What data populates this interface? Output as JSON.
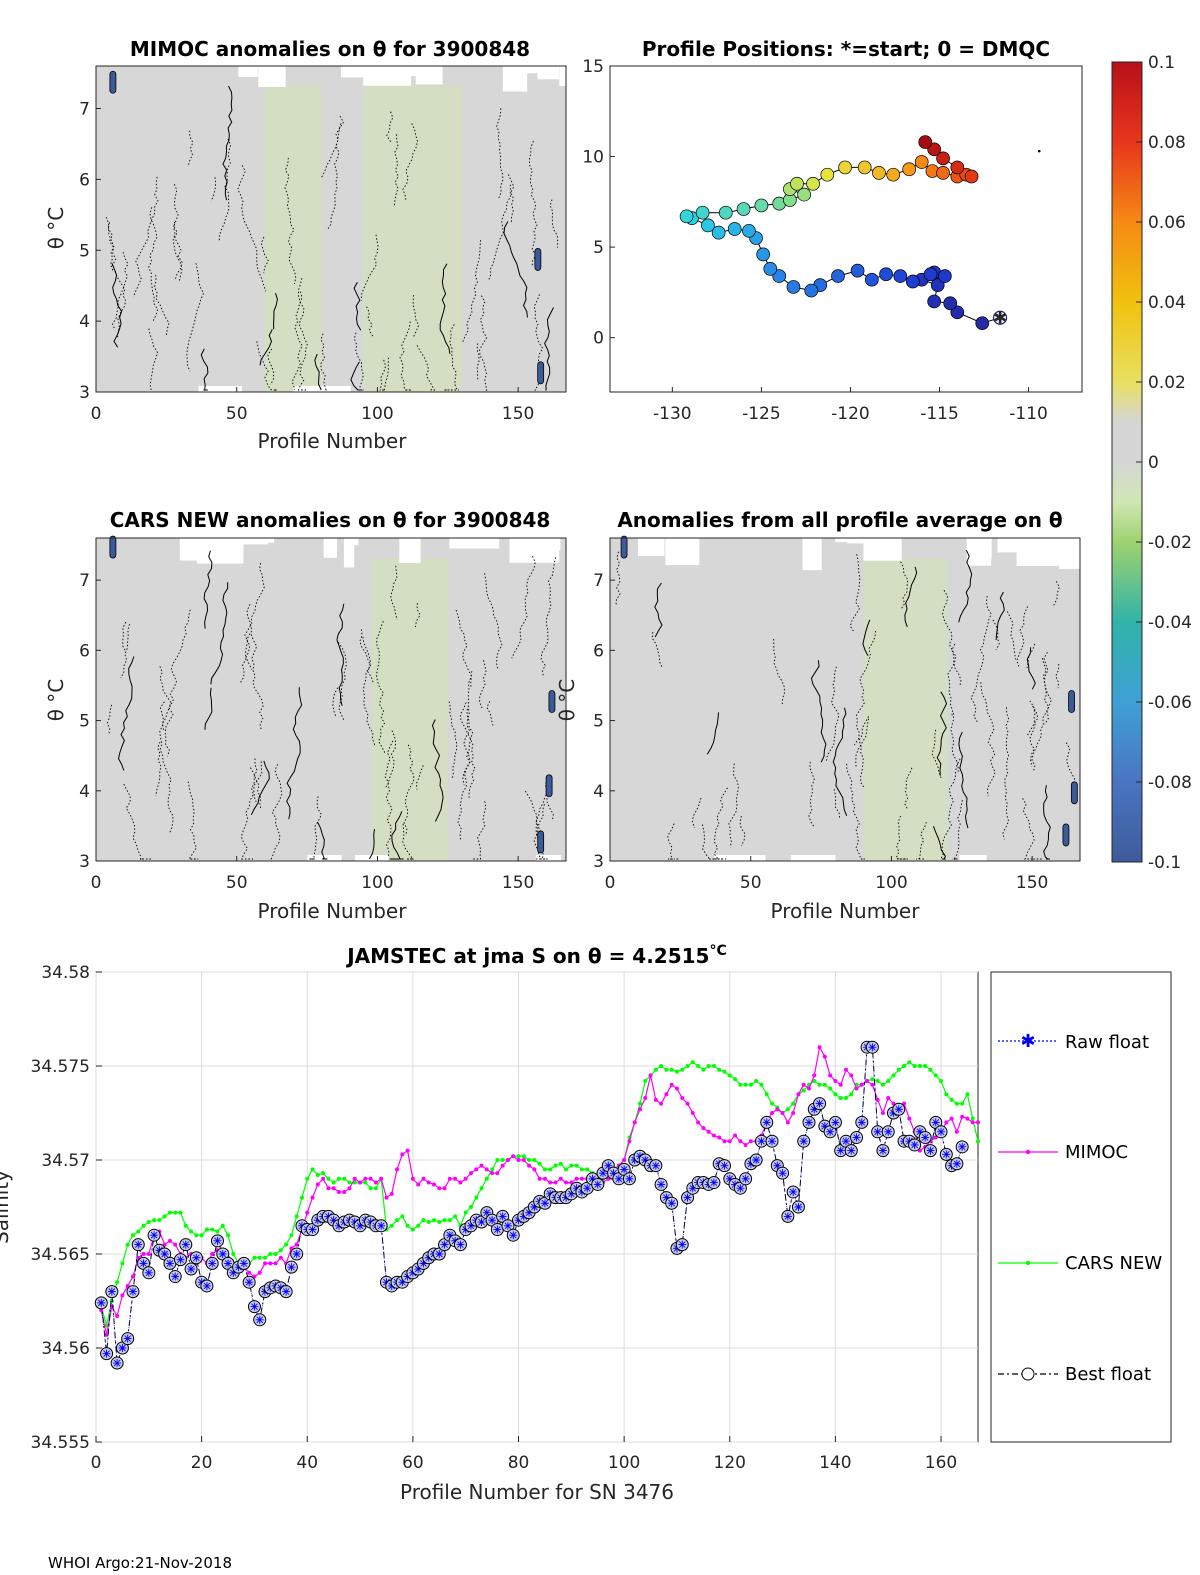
{
  "footer": "WHOI Argo:21-Nov-2018",
  "colors": {
    "raw": "#0000ff",
    "mimoc": "#ff00ff",
    "cars": "#00ff00",
    "best": "#000000",
    "marker_fill": "#c8cce8",
    "panel_bg": "#d7d7d7",
    "positive_tint": "#cfe3b0",
    "negative_tint": "#3c5a98"
  },
  "chart_data": [
    {
      "id": "mimoc",
      "type": "heatmap",
      "title": "MIMOC anomalies on θ  for 3900848",
      "xlabel": "Profile Number",
      "ylabel": "θ °C",
      "xlim": [
        0,
        167
      ],
      "ylim": [
        3,
        7.6
      ],
      "xticks": [
        0,
        50,
        100,
        150
      ],
      "yticks": [
        3,
        4,
        5,
        6,
        7
      ],
      "greenish_bands": [
        [
          60,
          80
        ],
        [
          95,
          130
        ]
      ],
      "negative_spots": [
        [
          6,
          7.3
        ],
        [
          158,
          3.2
        ],
        [
          157,
          4.8
        ]
      ]
    },
    {
      "id": "positions",
      "type": "scatter",
      "title": "Profile Positions: *=start; 0 = DMQC",
      "xlim": [
        -133.5,
        -107
      ],
      "ylim": [
        -3,
        15
      ],
      "xticks": [
        -130,
        -125,
        -120,
        -115,
        -110
      ],
      "yticks": [
        0,
        5,
        10,
        15
      ],
      "extra_dot": [
        -109.4,
        10.3
      ],
      "track": [
        [
          -111.6,
          1.1
        ],
        [
          -112.6,
          0.8
        ],
        [
          -114.0,
          1.4
        ],
        [
          -114.4,
          1.9
        ],
        [
          -115.3,
          2.0
        ],
        [
          -115.1,
          2.9
        ],
        [
          -116.0,
          3.2
        ],
        [
          -115.3,
          3.6
        ],
        [
          -114.7,
          3.4
        ],
        [
          -115.5,
          3.5
        ],
        [
          -116.5,
          3.1
        ],
        [
          -117.2,
          3.4
        ],
        [
          -118.0,
          3.5
        ],
        [
          -118.8,
          3.2
        ],
        [
          -119.6,
          3.7
        ],
        [
          -120.7,
          3.4
        ],
        [
          -121.7,
          2.9
        ],
        [
          -122.2,
          2.6
        ],
        [
          -123.2,
          2.8
        ],
        [
          -124.0,
          3.4
        ],
        [
          -124.5,
          3.8
        ],
        [
          -124.9,
          4.6
        ],
        [
          -125.3,
          5.5
        ],
        [
          -125.7,
          5.9
        ],
        [
          -126.5,
          6.0
        ],
        [
          -127.4,
          5.8
        ],
        [
          -128.0,
          6.2
        ],
        [
          -128.9,
          6.6
        ],
        [
          -129.2,
          6.7
        ],
        [
          -128.3,
          6.9
        ],
        [
          -127.0,
          6.9
        ],
        [
          -126.0,
          7.1
        ],
        [
          -125.0,
          7.3
        ],
        [
          -124.0,
          7.4
        ],
        [
          -123.4,
          7.6
        ],
        [
          -122.6,
          7.9
        ],
        [
          -123.4,
          8.2
        ],
        [
          -123.0,
          8.5
        ],
        [
          -122.1,
          8.5
        ],
        [
          -121.3,
          9.0
        ],
        [
          -120.3,
          9.4
        ],
        [
          -119.2,
          9.4
        ],
        [
          -118.4,
          9.1
        ],
        [
          -117.6,
          9.0
        ],
        [
          -116.7,
          9.3
        ],
        [
          -116.0,
          9.7
        ],
        [
          -115.4,
          9.2
        ],
        [
          -114.8,
          9.1
        ],
        [
          -114.0,
          8.9
        ],
        [
          -113.5,
          9.0
        ],
        [
          -113.2,
          8.9
        ],
        [
          -114.0,
          9.4
        ],
        [
          -114.8,
          9.9
        ],
        [
          -115.3,
          10.4
        ],
        [
          -115.8,
          10.8
        ]
      ]
    },
    {
      "id": "colorbar",
      "type": "heatmap",
      "title": "",
      "ticks": [
        -0.1,
        -0.08,
        -0.06,
        -0.04,
        -0.02,
        0,
        0.02,
        0.04,
        0.06,
        0.08,
        0.1
      ],
      "tick_labels": [
        "-0.1",
        "-0.08",
        "-0.06",
        "-0.04",
        "-0.02",
        "0",
        "0.02",
        "0.04",
        "0.06",
        "0.08",
        "0.1"
      ]
    },
    {
      "id": "cars",
      "type": "heatmap",
      "title": "CARS NEW anomalies on θ for 3900848",
      "xlabel": "Profile Number",
      "ylabel": "θ °C",
      "xlim": [
        0,
        167
      ],
      "ylim": [
        3,
        7.6
      ],
      "xticks": [
        0,
        50,
        100,
        150
      ],
      "yticks": [
        3,
        4,
        5,
        6,
        7
      ],
      "greenish_bands": [
        [
          98,
          125
        ]
      ],
      "negative_spots": [
        [
          6,
          7.4
        ],
        [
          158,
          3.2
        ],
        [
          162,
          5.2
        ],
        [
          161,
          4.0
        ]
      ]
    },
    {
      "id": "allavg",
      "type": "heatmap",
      "title": "Anomalies from all profile average on θ",
      "xlabel": "Profile Number",
      "ylabel": "θ °C",
      "xlim": [
        0,
        167
      ],
      "ylim": [
        3,
        7.6
      ],
      "xticks": [
        0,
        50,
        100,
        150
      ],
      "yticks": [
        3,
        4,
        5,
        6,
        7
      ],
      "greenish_bands": [
        [
          90,
          120
        ]
      ],
      "negative_spots": [
        [
          5,
          7.4
        ],
        [
          164,
          5.2
        ],
        [
          162,
          3.3
        ],
        [
          165,
          3.9
        ]
      ]
    },
    {
      "id": "salinity",
      "type": "line",
      "title": "JAMSTEC at jma S on θ = 4.2515",
      "title_unit": "°C",
      "xlabel": "Profile Number for SN 3476",
      "ylabel": "Salinity",
      "xlim": [
        0,
        167
      ],
      "ylim": [
        34.555,
        34.58
      ],
      "xticks": [
        0,
        20,
        40,
        60,
        80,
        100,
        120,
        140,
        160
      ],
      "yticks": [
        34.555,
        34.56,
        34.565,
        34.57,
        34.575,
        34.58
      ],
      "ytick_labels": [
        "34.555",
        "34.56",
        "34.565",
        "34.57",
        "34.575",
        "34.58"
      ],
      "legend": [
        "Raw float",
        "MIMOC",
        "CARS NEW",
        "Best float"
      ],
      "series": [
        {
          "name": "Raw float",
          "values": [
            34.5624,
            34.5597,
            34.563,
            34.5592,
            34.56,
            34.5605,
            34.563,
            34.5655,
            34.5645,
            34.564,
            34.566,
            34.5652,
            34.565,
            34.5645,
            34.5638,
            34.5647,
            34.5655,
            34.5642,
            34.5648,
            34.5635,
            34.5633,
            34.5645,
            34.5657,
            34.565,
            34.5645,
            34.564,
            34.5643,
            34.5645,
            34.5635,
            34.5622,
            34.5615,
            34.563,
            34.5632,
            34.5633,
            34.5632,
            34.563,
            34.5643,
            34.565,
            34.5665,
            34.5663,
            34.5663,
            34.5668,
            34.567,
            34.567,
            34.5668,
            34.5665,
            34.5667,
            34.5668,
            34.5667,
            34.5665,
            34.5668,
            34.5667,
            34.5665,
            34.5665,
            34.5635,
            34.5633,
            34.5635,
            34.5635,
            34.5638,
            34.564,
            34.5642,
            34.5645,
            34.5648,
            34.565,
            34.565,
            34.5655,
            34.566,
            34.5657,
            34.5655,
            34.5663,
            34.5665,
            34.5668,
            34.5667,
            34.5672,
            34.5668,
            34.5663,
            34.567,
            34.5665,
            34.566,
            34.5668,
            34.567,
            34.5672,
            34.5675,
            34.5678,
            34.5677,
            34.5682,
            34.568,
            34.568,
            34.568,
            34.5682,
            34.5685,
            34.5683,
            34.5685,
            34.569,
            34.5687,
            34.5693,
            34.5697,
            34.5693,
            34.569,
            34.5695,
            34.569,
            34.57,
            34.5702,
            34.57,
            34.5697,
            34.5697,
            34.5687,
            34.568,
            34.5677,
            34.5653,
            34.5655,
            34.568,
            34.5685,
            34.5688,
            34.5688,
            34.5687,
            34.5688,
            34.5698,
            34.5697,
            34.569,
            34.5687,
            34.5685,
            34.569,
            34.5698,
            34.57,
            34.571,
            34.572,
            34.571,
            34.5697,
            34.5693,
            34.567,
            34.5683,
            34.5675,
            34.571,
            34.572,
            34.5727,
            34.573,
            34.5718,
            34.5715,
            34.572,
            34.5705,
            34.571,
            34.5705,
            34.5712,
            34.572,
            34.576,
            34.576,
            34.5715,
            34.5705,
            34.5715,
            34.5725,
            34.5727,
            34.571,
            34.571,
            34.5708,
            34.5715,
            34.5712,
            34.5705,
            34.572,
            34.5715,
            34.5703,
            34.5697,
            34.5698,
            34.5707
          ]
        },
        {
          "name": "MIMOC",
          "values": [
            34.562,
            34.5607,
            34.5622,
            34.5617,
            34.5628,
            34.5633,
            34.5638,
            34.5648,
            34.565,
            34.565,
            34.566,
            34.5662,
            34.5655,
            34.5657,
            34.5655,
            34.565,
            34.5648,
            34.565,
            34.5645,
            34.5648,
            34.5645,
            34.565,
            34.5652,
            34.5652,
            34.5648,
            34.5645,
            34.5645,
            34.5643,
            34.564,
            34.5638,
            34.564,
            34.5645,
            34.5645,
            34.5645,
            34.5648,
            34.5645,
            34.5653,
            34.5655,
            34.5663,
            34.5672,
            34.568,
            34.5687,
            34.569,
            34.5685,
            34.5685,
            34.5683,
            34.5683,
            34.5685,
            34.569,
            34.5688,
            34.569,
            34.569,
            34.5688,
            34.569,
            34.568,
            34.5682,
            34.5695,
            34.5703,
            34.5705,
            34.569,
            34.5687,
            34.569,
            34.5688,
            34.5687,
            34.5685,
            34.5685,
            34.569,
            34.569,
            34.5688,
            34.569,
            34.5693,
            34.5695,
            34.5697,
            34.5695,
            34.5693,
            34.5693,
            34.5697,
            34.57,
            34.5702,
            34.57,
            34.57,
            34.5697,
            34.5695,
            34.569,
            34.569,
            34.5688,
            34.5688,
            34.569,
            34.5688,
            34.5688,
            34.569,
            34.569,
            34.569,
            34.5688,
            34.569,
            34.5688,
            34.569,
            34.569,
            34.5697,
            34.57,
            34.571,
            34.572,
            34.5727,
            34.5733,
            34.5745,
            34.5732,
            34.573,
            34.5735,
            34.574,
            34.5738,
            34.5733,
            34.573,
            34.5725,
            34.572,
            34.5717,
            34.5715,
            34.5713,
            34.5712,
            34.571,
            34.571,
            34.5713,
            34.571,
            34.5708,
            34.571,
            34.571,
            34.5713,
            34.572,
            34.5725,
            34.5727,
            34.5725,
            34.572,
            34.5725,
            34.5735,
            34.574,
            34.5738,
            34.5745,
            34.576,
            34.5755,
            34.5745,
            34.5742,
            34.574,
            34.5748,
            34.5745,
            34.5738,
            34.574,
            34.5742,
            34.574,
            34.5732,
            34.5725,
            34.5733,
            34.573,
            34.5728,
            34.573,
            34.5722,
            34.5715,
            34.5705,
            34.5707,
            34.571,
            34.5712,
            34.5715,
            34.572,
            34.5722,
            34.5715,
            34.5723,
            34.5722,
            34.572,
            34.572
          ]
        },
        {
          "name": "CARS NEW",
          "values": [
            34.5622,
            34.5612,
            34.5625,
            34.5635,
            34.5645,
            34.5655,
            34.566,
            34.5662,
            34.5665,
            34.5667,
            34.5668,
            34.5668,
            34.567,
            34.5672,
            34.5672,
            34.5672,
            34.5665,
            34.5662,
            34.566,
            34.566,
            34.5663,
            34.5663,
            34.5662,
            34.5665,
            34.566,
            34.565,
            34.5645,
            34.5643,
            34.5645,
            34.5648,
            34.5648,
            34.5648,
            34.565,
            34.565,
            34.5652,
            34.5655,
            34.566,
            34.567,
            34.568,
            34.569,
            34.5695,
            34.5692,
            34.5693,
            34.569,
            34.5688,
            34.569,
            34.569,
            34.5688,
            34.5688,
            34.5688,
            34.5688,
            34.5685,
            34.5685,
            34.569,
            34.5663,
            34.5665,
            34.5668,
            34.567,
            34.5665,
            34.5663,
            34.5665,
            34.5668,
            34.5667,
            34.5668,
            34.5667,
            34.5668,
            34.5668,
            34.567,
            34.5665,
            34.5672,
            34.5675,
            34.568,
            34.5685,
            34.569,
            34.5695,
            34.57,
            34.57,
            34.57,
            34.5702,
            34.5702,
            34.5702,
            34.57,
            34.57,
            34.5698,
            34.5695,
            34.5695,
            34.5697,
            34.5698,
            34.5695,
            34.5697,
            34.5697,
            34.5695,
            34.5695,
            34.5693,
            34.569,
            34.569,
            34.5693,
            34.5695,
            34.5697,
            34.57,
            34.5712,
            34.572,
            34.573,
            34.5742,
            34.5745,
            34.5748,
            34.575,
            34.5748,
            34.5748,
            34.5747,
            34.5748,
            34.575,
            34.5752,
            34.575,
            34.5748,
            34.575,
            34.575,
            34.5748,
            34.5747,
            34.5745,
            34.5743,
            34.574,
            34.574,
            34.574,
            34.5742,
            34.574,
            34.5735,
            34.573,
            34.5728,
            34.5725,
            34.5727,
            34.573,
            34.5735,
            34.5737,
            34.574,
            34.5742,
            34.574,
            34.574,
            34.5738,
            34.5735,
            34.5733,
            34.5733,
            34.5735,
            34.574,
            34.574,
            34.5742,
            34.5743,
            34.5742,
            34.574,
            34.5742,
            34.5745,
            34.5748,
            34.575,
            34.5752,
            34.575,
            34.575,
            34.575,
            34.5748,
            34.5745,
            34.5742,
            34.5735,
            34.5732,
            34.573,
            34.573,
            34.5735,
            34.5722,
            34.571
          ]
        }
      ]
    }
  ]
}
